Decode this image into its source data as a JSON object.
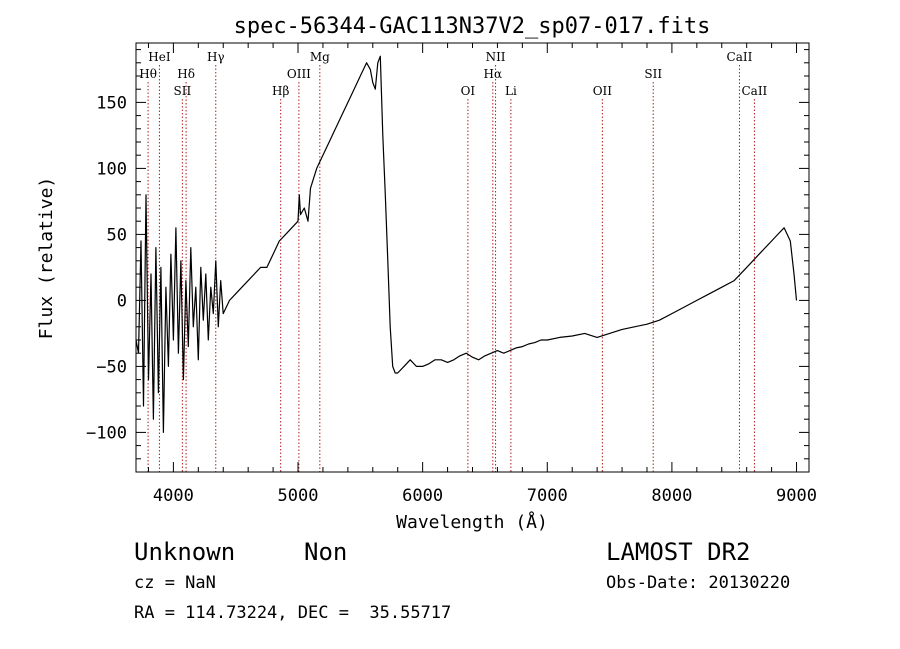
{
  "chart_data": {
    "type": "line",
    "title": "spec-56344-GAC113N37V2_sp07-017.fits",
    "xlabel": "Wavelength (Å)",
    "ylabel": "Flux (relative)",
    "xlim": [
      3700,
      9100
    ],
    "ylim": [
      -130,
      195
    ],
    "xticks": [
      4000,
      5000,
      6000,
      7000,
      8000,
      9000
    ],
    "yticks": [
      -100,
      -50,
      0,
      50,
      100,
      150
    ],
    "xtick_labels": [
      "4000",
      "5000",
      "6000",
      "7000",
      "8000",
      "9000"
    ],
    "ytick_labels": [
      "−100",
      "−50",
      "0",
      "50",
      "100",
      "150"
    ],
    "grid": false,
    "line_color": "#000000",
    "marker_color": "#b22222",
    "series": [
      {
        "x": [
          3700,
          3720,
          3740,
          3760,
          3780,
          3800,
          3820,
          3840,
          3860,
          3880,
          3900,
          3920,
          3940,
          3960,
          3980,
          4000,
          4020,
          4040,
          4060,
          4080,
          4100,
          4120,
          4140,
          4160,
          4180,
          4200,
          4220,
          4240,
          4260,
          4280,
          4300,
          4320,
          4340,
          4360,
          4380,
          4400,
          4450,
          4500,
          4550,
          4600,
          4650,
          4700,
          4750,
          4800,
          4850,
          4900,
          4950,
          5000,
          5010,
          5020,
          5050,
          5080,
          5100,
          5150,
          5200,
          5250,
          5300,
          5350,
          5400,
          5450,
          5500,
          5550,
          5580,
          5600,
          5620,
          5640,
          5660,
          5680,
          5700,
          5720,
          5740,
          5760,
          5780,
          5800,
          5850,
          5900,
          5950,
          6000,
          6050,
          6100,
          6150,
          6200,
          6250,
          6300,
          6350,
          6400,
          6450,
          6500,
          6550,
          6600,
          6650,
          6700,
          6750,
          6800,
          6850,
          6900,
          6950,
          7000,
          7100,
          7200,
          7300,
          7400,
          7500,
          7600,
          7700,
          7800,
          7900,
          8000,
          8100,
          8200,
          8300,
          8400,
          8500,
          8600,
          8700,
          8800,
          8850,
          8900,
          8950,
          8980,
          9000
        ],
        "y": [
          -30,
          -40,
          45,
          -80,
          80,
          -60,
          20,
          -90,
          40,
          -70,
          25,
          -100,
          10,
          -50,
          35,
          -30,
          55,
          -40,
          30,
          -60,
          15,
          -35,
          40,
          -20,
          10,
          -45,
          25,
          -15,
          20,
          -30,
          10,
          -10,
          30,
          -20,
          15,
          -10,
          0,
          5,
          10,
          15,
          20,
          25,
          25,
          35,
          45,
          50,
          55,
          60,
          80,
          65,
          70,
          60,
          85,
          100,
          110,
          120,
          130,
          140,
          150,
          160,
          170,
          180,
          175,
          165,
          160,
          180,
          185,
          125,
          80,
          30,
          -20,
          -50,
          -55,
          -55,
          -50,
          -45,
          -50,
          -50,
          -48,
          -45,
          -45,
          -47,
          -45,
          -42,
          -40,
          -43,
          -45,
          -42,
          -40,
          -38,
          -40,
          -38,
          -36,
          -35,
          -33,
          -32,
          -30,
          -30,
          -28,
          -27,
          -25,
          -28,
          -25,
          -22,
          -20,
          -18,
          -15,
          -10,
          -5,
          0,
          5,
          10,
          15,
          25,
          35,
          45,
          50,
          55,
          45,
          20,
          0
        ]
      }
    ],
    "lines_top": [
      {
        "label": "HeI",
        "x": 3888
      },
      {
        "label": "Hγ",
        "x": 4340
      },
      {
        "label": "Mg",
        "x": 5175
      },
      {
        "label": "NII",
        "x": 6585
      },
      {
        "label": "CaII",
        "x": 8542
      }
    ],
    "lines_mid": [
      {
        "label": "Hθ",
        "x": 3797
      },
      {
        "label": "Hδ",
        "x": 4102
      },
      {
        "label": "OIII",
        "x": 5007
      },
      {
        "label": "Hα",
        "x": 6563
      },
      {
        "label": "SII",
        "x": 7850
      }
    ],
    "lines_low": [
      {
        "label": "SII",
        "x": 4072
      },
      {
        "label": "Hβ",
        "x": 4861
      },
      {
        "label": "OI",
        "x": 6363
      },
      {
        "label": "Li",
        "x": 6708
      },
      {
        "label": "OII",
        "x": 7442
      },
      {
        "label": "CaII",
        "x": 8662
      }
    ]
  },
  "info": {
    "classification": "Unknown",
    "subclass": "Non",
    "survey": "LAMOST DR2",
    "cz": "cz = NaN",
    "obs_date": "Obs-Date: 20130220",
    "coords": "RA = 114.73224, DEC =  35.55717"
  }
}
